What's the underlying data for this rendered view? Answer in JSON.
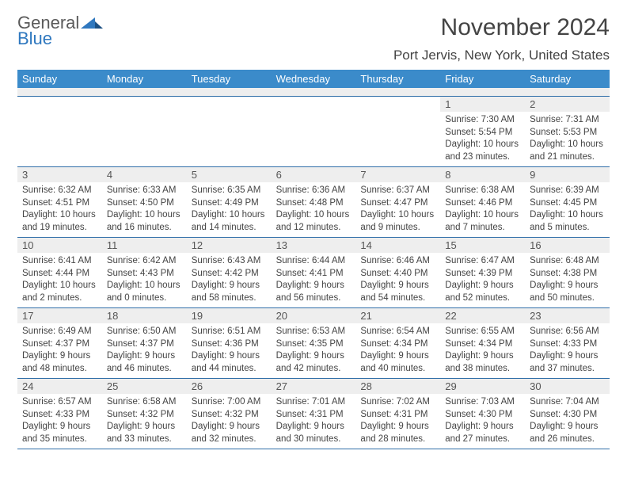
{
  "brand": {
    "word1": "General",
    "word2": "Blue"
  },
  "title": "November 2024",
  "location": "Port Jervis, New York, United States",
  "colors": {
    "header_bg": "#3b8bca",
    "header_text": "#ffffff",
    "rule": "#2f6ea8",
    "daybar": "#eeeeee",
    "text": "#444444",
    "logo_blue": "#2f78bf",
    "logo_gray": "#5a5a5a"
  },
  "weekdays": [
    "Sunday",
    "Monday",
    "Tuesday",
    "Wednesday",
    "Thursday",
    "Friday",
    "Saturday"
  ],
  "weeks": [
    [
      {
        "empty": true
      },
      {
        "empty": true
      },
      {
        "empty": true
      },
      {
        "empty": true
      },
      {
        "empty": true
      },
      {
        "day": "1",
        "sunrise": "Sunrise: 7:30 AM",
        "sunset": "Sunset: 5:54 PM",
        "daylight1": "Daylight: 10 hours",
        "daylight2": "and 23 minutes."
      },
      {
        "day": "2",
        "sunrise": "Sunrise: 7:31 AM",
        "sunset": "Sunset: 5:53 PM",
        "daylight1": "Daylight: 10 hours",
        "daylight2": "and 21 minutes."
      }
    ],
    [
      {
        "day": "3",
        "sunrise": "Sunrise: 6:32 AM",
        "sunset": "Sunset: 4:51 PM",
        "daylight1": "Daylight: 10 hours",
        "daylight2": "and 19 minutes."
      },
      {
        "day": "4",
        "sunrise": "Sunrise: 6:33 AM",
        "sunset": "Sunset: 4:50 PM",
        "daylight1": "Daylight: 10 hours",
        "daylight2": "and 16 minutes."
      },
      {
        "day": "5",
        "sunrise": "Sunrise: 6:35 AM",
        "sunset": "Sunset: 4:49 PM",
        "daylight1": "Daylight: 10 hours",
        "daylight2": "and 14 minutes."
      },
      {
        "day": "6",
        "sunrise": "Sunrise: 6:36 AM",
        "sunset": "Sunset: 4:48 PM",
        "daylight1": "Daylight: 10 hours",
        "daylight2": "and 12 minutes."
      },
      {
        "day": "7",
        "sunrise": "Sunrise: 6:37 AM",
        "sunset": "Sunset: 4:47 PM",
        "daylight1": "Daylight: 10 hours",
        "daylight2": "and 9 minutes."
      },
      {
        "day": "8",
        "sunrise": "Sunrise: 6:38 AM",
        "sunset": "Sunset: 4:46 PM",
        "daylight1": "Daylight: 10 hours",
        "daylight2": "and 7 minutes."
      },
      {
        "day": "9",
        "sunrise": "Sunrise: 6:39 AM",
        "sunset": "Sunset: 4:45 PM",
        "daylight1": "Daylight: 10 hours",
        "daylight2": "and 5 minutes."
      }
    ],
    [
      {
        "day": "10",
        "sunrise": "Sunrise: 6:41 AM",
        "sunset": "Sunset: 4:44 PM",
        "daylight1": "Daylight: 10 hours",
        "daylight2": "and 2 minutes."
      },
      {
        "day": "11",
        "sunrise": "Sunrise: 6:42 AM",
        "sunset": "Sunset: 4:43 PM",
        "daylight1": "Daylight: 10 hours",
        "daylight2": "and 0 minutes."
      },
      {
        "day": "12",
        "sunrise": "Sunrise: 6:43 AM",
        "sunset": "Sunset: 4:42 PM",
        "daylight1": "Daylight: 9 hours",
        "daylight2": "and 58 minutes."
      },
      {
        "day": "13",
        "sunrise": "Sunrise: 6:44 AM",
        "sunset": "Sunset: 4:41 PM",
        "daylight1": "Daylight: 9 hours",
        "daylight2": "and 56 minutes."
      },
      {
        "day": "14",
        "sunrise": "Sunrise: 6:46 AM",
        "sunset": "Sunset: 4:40 PM",
        "daylight1": "Daylight: 9 hours",
        "daylight2": "and 54 minutes."
      },
      {
        "day": "15",
        "sunrise": "Sunrise: 6:47 AM",
        "sunset": "Sunset: 4:39 PM",
        "daylight1": "Daylight: 9 hours",
        "daylight2": "and 52 minutes."
      },
      {
        "day": "16",
        "sunrise": "Sunrise: 6:48 AM",
        "sunset": "Sunset: 4:38 PM",
        "daylight1": "Daylight: 9 hours",
        "daylight2": "and 50 minutes."
      }
    ],
    [
      {
        "day": "17",
        "sunrise": "Sunrise: 6:49 AM",
        "sunset": "Sunset: 4:37 PM",
        "daylight1": "Daylight: 9 hours",
        "daylight2": "and 48 minutes."
      },
      {
        "day": "18",
        "sunrise": "Sunrise: 6:50 AM",
        "sunset": "Sunset: 4:37 PM",
        "daylight1": "Daylight: 9 hours",
        "daylight2": "and 46 minutes."
      },
      {
        "day": "19",
        "sunrise": "Sunrise: 6:51 AM",
        "sunset": "Sunset: 4:36 PM",
        "daylight1": "Daylight: 9 hours",
        "daylight2": "and 44 minutes."
      },
      {
        "day": "20",
        "sunrise": "Sunrise: 6:53 AM",
        "sunset": "Sunset: 4:35 PM",
        "daylight1": "Daylight: 9 hours",
        "daylight2": "and 42 minutes."
      },
      {
        "day": "21",
        "sunrise": "Sunrise: 6:54 AM",
        "sunset": "Sunset: 4:34 PM",
        "daylight1": "Daylight: 9 hours",
        "daylight2": "and 40 minutes."
      },
      {
        "day": "22",
        "sunrise": "Sunrise: 6:55 AM",
        "sunset": "Sunset: 4:34 PM",
        "daylight1": "Daylight: 9 hours",
        "daylight2": "and 38 minutes."
      },
      {
        "day": "23",
        "sunrise": "Sunrise: 6:56 AM",
        "sunset": "Sunset: 4:33 PM",
        "daylight1": "Daylight: 9 hours",
        "daylight2": "and 37 minutes."
      }
    ],
    [
      {
        "day": "24",
        "sunrise": "Sunrise: 6:57 AM",
        "sunset": "Sunset: 4:33 PM",
        "daylight1": "Daylight: 9 hours",
        "daylight2": "and 35 minutes."
      },
      {
        "day": "25",
        "sunrise": "Sunrise: 6:58 AM",
        "sunset": "Sunset: 4:32 PM",
        "daylight1": "Daylight: 9 hours",
        "daylight2": "and 33 minutes."
      },
      {
        "day": "26",
        "sunrise": "Sunrise: 7:00 AM",
        "sunset": "Sunset: 4:32 PM",
        "daylight1": "Daylight: 9 hours",
        "daylight2": "and 32 minutes."
      },
      {
        "day": "27",
        "sunrise": "Sunrise: 7:01 AM",
        "sunset": "Sunset: 4:31 PM",
        "daylight1": "Daylight: 9 hours",
        "daylight2": "and 30 minutes."
      },
      {
        "day": "28",
        "sunrise": "Sunrise: 7:02 AM",
        "sunset": "Sunset: 4:31 PM",
        "daylight1": "Daylight: 9 hours",
        "daylight2": "and 28 minutes."
      },
      {
        "day": "29",
        "sunrise": "Sunrise: 7:03 AM",
        "sunset": "Sunset: 4:30 PM",
        "daylight1": "Daylight: 9 hours",
        "daylight2": "and 27 minutes."
      },
      {
        "day": "30",
        "sunrise": "Sunrise: 7:04 AM",
        "sunset": "Sunset: 4:30 PM",
        "daylight1": "Daylight: 9 hours",
        "daylight2": "and 26 minutes."
      }
    ]
  ]
}
